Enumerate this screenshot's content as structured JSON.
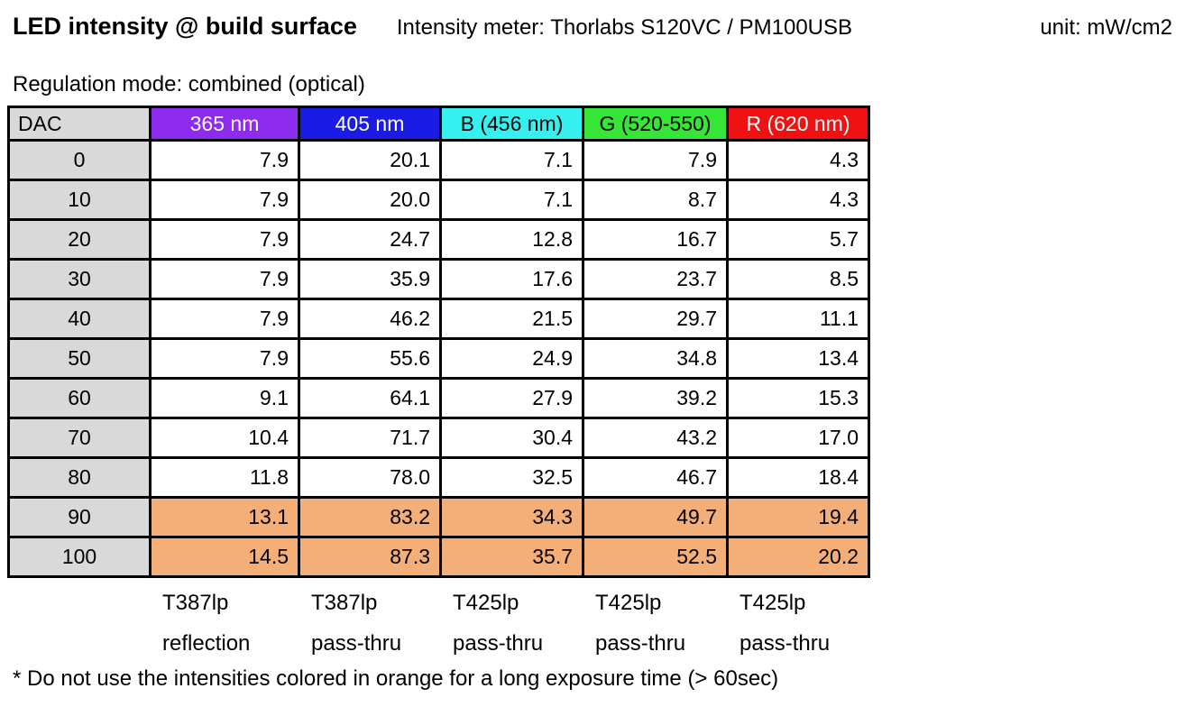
{
  "header": {
    "title": "LED intensity @ build surface",
    "meter": "Intensity meter: Thorlabs S120VC / PM100USB",
    "unit": "unit: mW/cm2",
    "regulation_mode": "Regulation mode: combined (optical)"
  },
  "colors": {
    "gray": "#D9D9D9",
    "orange_warning": "#F4AF78",
    "border": "#000000"
  },
  "table": {
    "columns": [
      {
        "key": "dac",
        "label": "DAC",
        "bg": "#D9D9D9",
        "text_color": "#000000",
        "filter": "",
        "mode": ""
      },
      {
        "key": "365nm",
        "label": "365 nm",
        "bg": "#8D2BEE",
        "text_color": "#FFFFFF",
        "filter": "T387lp",
        "mode": "reflection"
      },
      {
        "key": "405nm",
        "label": "405 nm",
        "bg": "#1B1BE6",
        "text_color": "#FFFFFF",
        "filter": "T387lp",
        "mode": "pass-thru"
      },
      {
        "key": "b456",
        "label": "B (456 nm)",
        "bg": "#36F0F0",
        "text_color": "#000000",
        "filter": "T425lp",
        "mode": "pass-thru"
      },
      {
        "key": "g520",
        "label": "G (520-550)",
        "bg": "#36E636",
        "text_color": "#000000",
        "filter": "T425lp",
        "mode": "pass-thru"
      },
      {
        "key": "r620",
        "label": "R (620 nm)",
        "bg": "#F01212",
        "text_color": "#FFFFFF",
        "filter": "T425lp",
        "mode": "pass-thru"
      }
    ],
    "rows": [
      {
        "dac": "0",
        "values": [
          "7.9",
          "20.1",
          "7.1",
          "7.9",
          "4.3"
        ],
        "warning": false
      },
      {
        "dac": "10",
        "values": [
          "7.9",
          "20.0",
          "7.1",
          "8.7",
          "4.3"
        ],
        "warning": false
      },
      {
        "dac": "20",
        "values": [
          "7.9",
          "24.7",
          "12.8",
          "16.7",
          "5.7"
        ],
        "warning": false
      },
      {
        "dac": "30",
        "values": [
          "7.9",
          "35.9",
          "17.6",
          "23.7",
          "8.5"
        ],
        "warning": false
      },
      {
        "dac": "40",
        "values": [
          "7.9",
          "46.2",
          "21.5",
          "29.7",
          "11.1"
        ],
        "warning": false
      },
      {
        "dac": "50",
        "values": [
          "7.9",
          "55.6",
          "24.9",
          "34.8",
          "13.4"
        ],
        "warning": false
      },
      {
        "dac": "60",
        "values": [
          "9.1",
          "64.1",
          "27.9",
          "39.2",
          "15.3"
        ],
        "warning": false
      },
      {
        "dac": "70",
        "values": [
          "10.4",
          "71.7",
          "30.4",
          "43.2",
          "17.0"
        ],
        "warning": false
      },
      {
        "dac": "80",
        "values": [
          "11.8",
          "78.0",
          "32.5",
          "46.7",
          "18.4"
        ],
        "warning": false
      },
      {
        "dac": "90",
        "values": [
          "13.1",
          "83.2",
          "34.3",
          "49.7",
          "19.4"
        ],
        "warning": true
      },
      {
        "dac": "100",
        "values": [
          "14.5",
          "87.3",
          "35.7",
          "52.5",
          "20.2"
        ],
        "warning": true
      }
    ],
    "footnote": "* Do not use the intensities colored in orange for a long exposure time (> 60sec)"
  }
}
